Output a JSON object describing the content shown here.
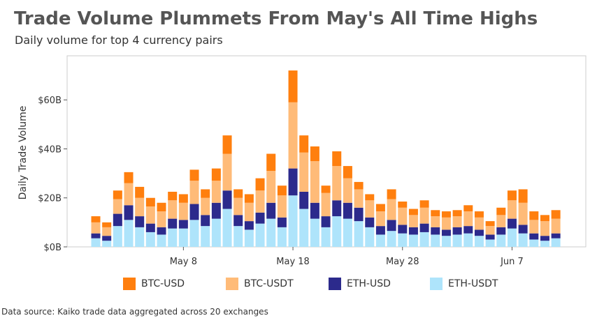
{
  "header": {
    "title": "Trade Volume Plummets From May's All Time Highs",
    "subtitle": "Daily volume for top 4 currency pairs"
  },
  "footer": {
    "source": "Data source: Kaiko trade data aggregated across 20 exchanges"
  },
  "colors": {
    "BTC-USD": "#ff7f0e",
    "BTC-USDT": "#ffbb78",
    "ETH-USD": "#2c2a8c",
    "ETH-USDT": "#aee4fb"
  },
  "chart_data": {
    "type": "bar",
    "stacked": true,
    "title": "Trade Volume Plummets From May's All Time Highs",
    "subtitle": "Daily volume for top 4 currency pairs",
    "xlabel": "",
    "ylabel": "Daily Trade Volume",
    "ylim": [
      0,
      78
    ],
    "y_ticks": [
      0,
      20,
      40,
      60
    ],
    "y_tick_labels": [
      "$0B",
      "$20B",
      "$40B",
      "$60B"
    ],
    "x_ticks": [
      {
        "index": 8,
        "label": "May 8"
      },
      {
        "index": 18,
        "label": "May 18"
      },
      {
        "index": 28,
        "label": "May 28"
      },
      {
        "index": 38,
        "label": "Jun 7"
      }
    ],
    "categories": [
      "May 1",
      "May 2",
      "May 3",
      "May 4",
      "May 5",
      "May 6",
      "May 7",
      "May 8",
      "May 9",
      "May 10",
      "May 11",
      "May 12",
      "May 13",
      "May 14",
      "May 15",
      "May 16",
      "May 17",
      "May 18",
      "May 19",
      "May 20",
      "May 21",
      "May 22",
      "May 23",
      "May 24",
      "May 25",
      "May 26",
      "May 27",
      "May 28",
      "May 29",
      "May 30",
      "May 31",
      "Jun 1",
      "Jun 2",
      "Jun 3",
      "Jun 4",
      "Jun 5",
      "Jun 6",
      "Jun 7",
      "Jun 8",
      "Jun 9",
      "Jun 10",
      "Jun 11",
      "Jun 12"
    ],
    "legend": [
      "BTC-USD",
      "BTC-USDT",
      "ETH-USD",
      "ETH-USDT"
    ],
    "series": [
      {
        "name": "ETH-USDT",
        "values": [
          3.5,
          2.5,
          8.5,
          11,
          8,
          6,
          5,
          7.5,
          7.5,
          11,
          8.5,
          11.5,
          15.5,
          8.5,
          7,
          9.5,
          11.5,
          8,
          21,
          15.5,
          11.5,
          8,
          12.5,
          11.5,
          10.5,
          8,
          5,
          6.5,
          5.5,
          5,
          6,
          5,
          4.5,
          5,
          5.5,
          4.5,
          3,
          5,
          7.5,
          5.5,
          3,
          2.5,
          3.5
        ]
      },
      {
        "name": "ETH-USD",
        "values": [
          2,
          2,
          5,
          6,
          4.5,
          3.5,
          3,
          4,
          3.5,
          6.5,
          4.5,
          6.5,
          7.5,
          4.5,
          3.5,
          4.5,
          6.5,
          4,
          11,
          7,
          6.5,
          4.5,
          6.5,
          6.5,
          5.5,
          4,
          3.5,
          4.5,
          3.5,
          3,
          3.5,
          3,
          2.5,
          3,
          3,
          2.5,
          2,
          3,
          4,
          3.5,
          2.5,
          2,
          2
        ]
      },
      {
        "name": "BTC-USDT",
        "values": [
          4.5,
          3.5,
          6,
          9,
          7.5,
          7,
          6.5,
          7.5,
          7,
          9.5,
          7,
          9,
          15,
          7,
          7.5,
          9,
          13,
          9,
          27,
          16,
          17,
          9.5,
          14,
          10,
          7.5,
          7,
          6,
          8.5,
          7,
          5,
          6.5,
          4.5,
          5,
          4.5,
          6,
          5,
          3.5,
          5,
          7.5,
          9,
          5.5,
          6,
          6
        ]
      },
      {
        "name": "BTC-USD",
        "values": [
          2.5,
          2,
          3.5,
          4.5,
          4.5,
          3.5,
          3.5,
          3.5,
          3.5,
          4.5,
          3.5,
          5,
          7.5,
          3.5,
          3.5,
          5,
          7,
          4,
          13,
          7,
          6,
          3,
          6,
          5,
          3,
          2.5,
          3,
          4,
          2.5,
          2.5,
          3,
          2.5,
          2.5,
          2.5,
          2.5,
          2.5,
          2,
          3,
          4,
          5.5,
          3.5,
          2.5,
          3.5
        ]
      }
    ]
  }
}
